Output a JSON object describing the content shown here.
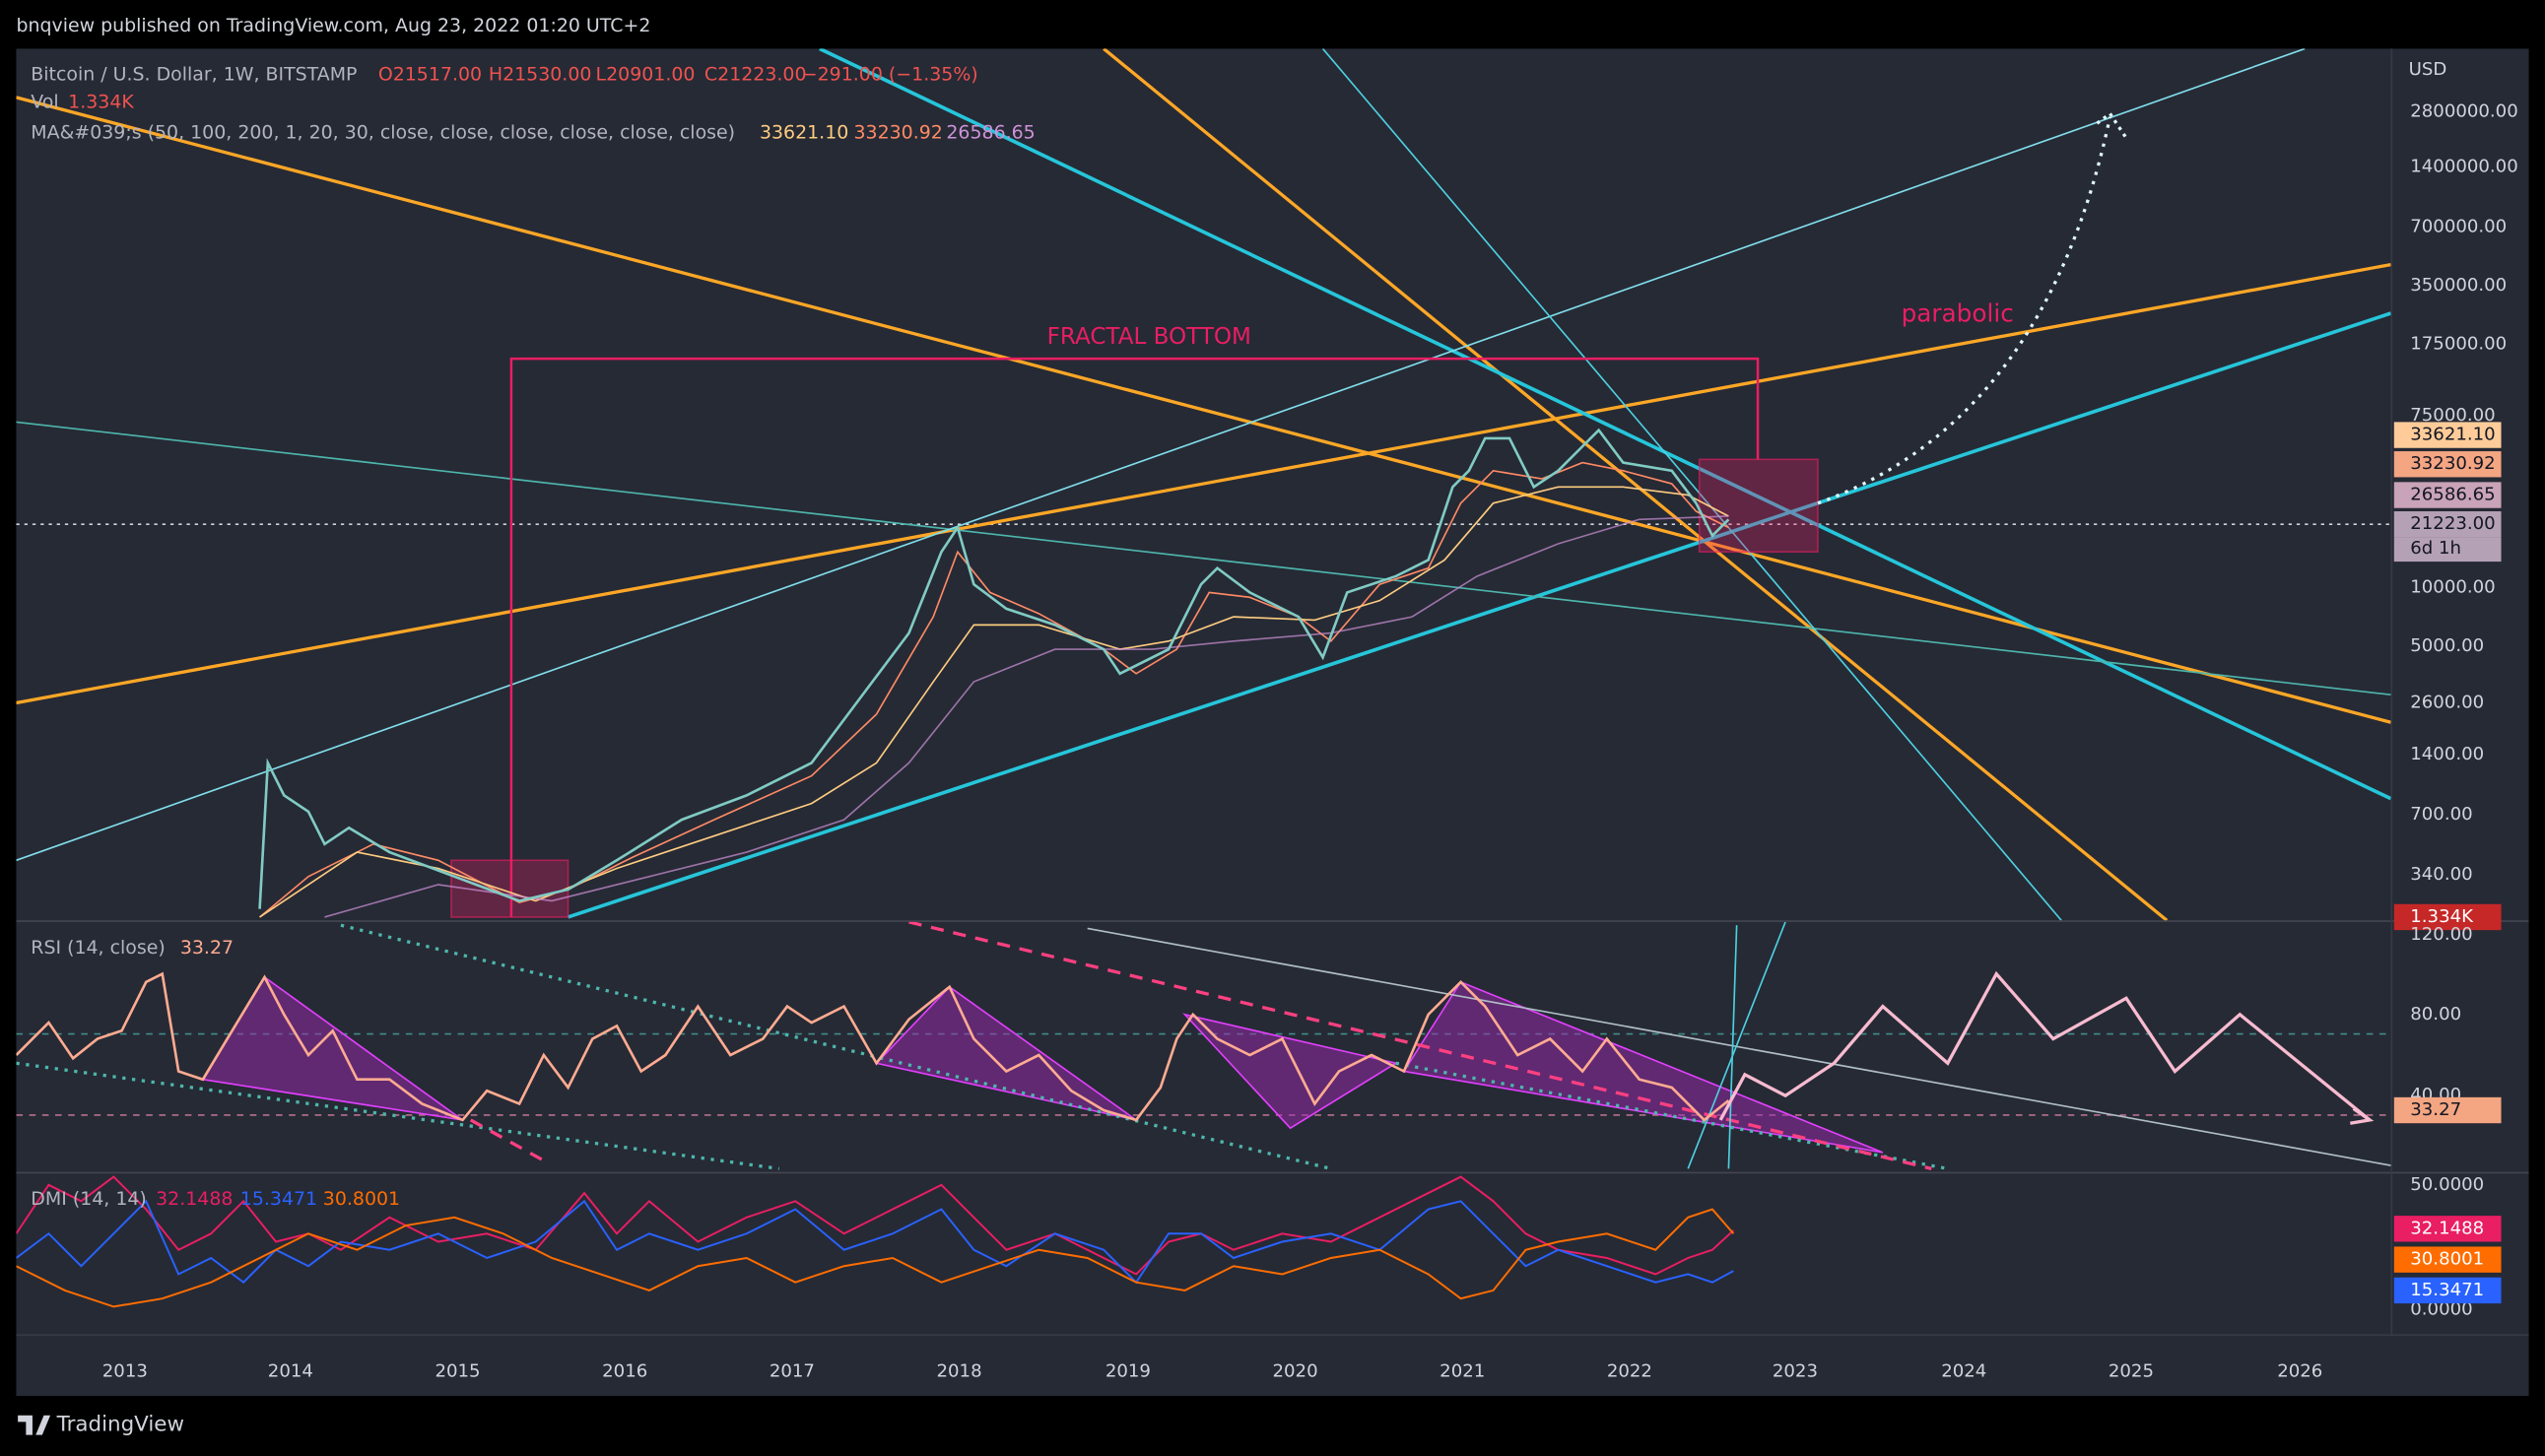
{
  "header": {
    "publisher": "bnqview published on TradingView.com, Aug 23, 2022 01:20 UTC+2"
  },
  "legend": {
    "symbol": "Bitcoin / U.S. Dollar, 1W, BITSTAMP",
    "open": "O21517.00",
    "high": "H21530.00",
    "low": "L20901.00",
    "close": "C21223.00",
    "change": "−291.00 (−1.35%)",
    "volume_label": "Vol",
    "volume": "1.334K",
    "ma_label": "MA&#039;s (50, 100, 200, 1, 20, 30, close, close, close, close, close, close)",
    "ma_values": [
      "33621.10",
      "33230.92",
      "26586.65"
    ]
  },
  "price_axis": {
    "unit": "USD",
    "ticks": [
      "2800000.00",
      "1400000.00",
      "700000.00",
      "350000.00",
      "175000.00",
      "75000.00",
      "10000.00",
      "5000.00",
      "2600.00",
      "1400.00",
      "700.00",
      "340.00"
    ]
  },
  "price_labels": [
    "33621.10",
    "33230.92",
    "26586.65",
    "21223.00",
    "6d 1h"
  ],
  "volume_tag": "1.334K",
  "annotations": {
    "fractal": "FRACTAL BOTTOM",
    "parabolic": "parabolic"
  },
  "rsi": {
    "label": "RSI (14, close)",
    "value": "33.27",
    "ticks": [
      "120.00",
      "80.00",
      "40.00"
    ],
    "tag": "33.27"
  },
  "dmi": {
    "label": "DMI (14, 14)",
    "values": [
      "32.1488",
      "15.3471",
      "30.8001"
    ],
    "ticks": [
      "50.0000",
      "0.0000"
    ],
    "tags": [
      "32.1488",
      "30.8001",
      "15.3471"
    ]
  },
  "time_axis": [
    "2013",
    "2014",
    "2015",
    "2016",
    "2017",
    "2018",
    "2019",
    "2020",
    "2021",
    "2022",
    "2023",
    "2024",
    "2025",
    "2026"
  ],
  "footer": "TradingView"
}
